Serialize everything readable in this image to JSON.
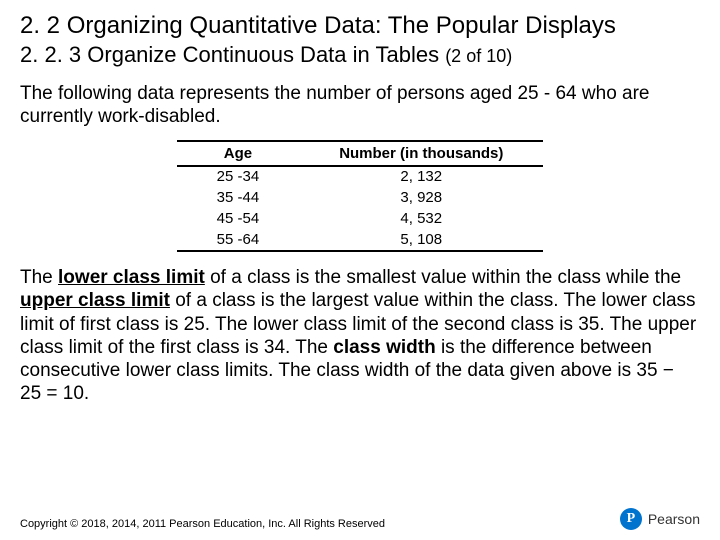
{
  "section_title": "2. 2 Organizing Quantitative Data: The Popular Displays",
  "subsection_title_main": "2. 2. 3 Organize Continuous Data in Tables ",
  "subsection_title_paren": "(2 of 10)",
  "intro_text": "The following data represents the number of persons aged 25 - 64 who are currently work-disabled.",
  "table": {
    "columns": [
      "Age",
      "Number (in thousands)"
    ],
    "rows": [
      [
        "25 -34",
        "2, 132"
      ],
      [
        "35 -44",
        "3, 928"
      ],
      [
        "45 -54",
        "4, 532"
      ],
      [
        "55 -64",
        "5, 108"
      ]
    ],
    "header_fontsize": 15,
    "cell_fontsize": 15,
    "border_color": "#000000",
    "border_width": 2
  },
  "body_parts": {
    "p1a": "The ",
    "p1_lcl": "lower class limit",
    "p1b": " of a class is the smallest value within the class while the ",
    "p1_ucl": "upper class limit",
    "p1c": " of a class is the largest value within the class. The lower class limit of first class is 25. The lower class limit of the second class is 35. The upper class limit of the first class is 34. The ",
    "p1_cw": "class width",
    "p1d": " is the difference between consecutive lower class limits. The class width of the data given above is 35 − 25 = 10."
  },
  "copyright": "Copyright © 2018, 2014, 2011 Pearson Education, Inc. All Rights Reserved",
  "logo": {
    "mark": "P",
    "text": "Pearson",
    "circle_color": "#0073cf"
  },
  "colors": {
    "text": "#000000",
    "background": "#ffffff"
  },
  "typography": {
    "title_fontsize": 24,
    "subtitle_fontsize": 22,
    "body_fontsize": 19,
    "footer_fontsize": 11
  }
}
